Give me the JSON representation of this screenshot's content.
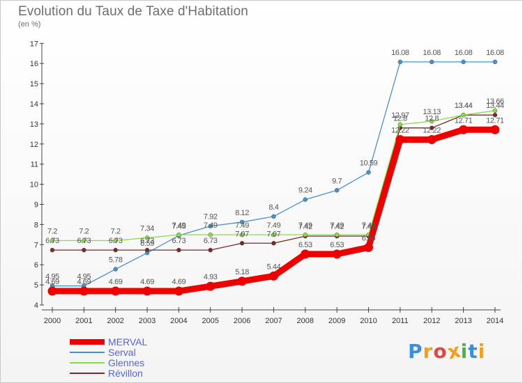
{
  "chart_data": {
    "type": "line",
    "title": "Evolution du Taux de Taxe d'Habitation",
    "subtitle": "(en %)",
    "x": [
      "2000",
      "2001",
      "2002",
      "2003",
      "2004",
      "2005",
      "2006",
      "2007",
      "2008",
      "2009",
      "2010",
      "2011",
      "2012",
      "2013",
      "2014"
    ],
    "ylim": [
      4,
      17
    ],
    "yticks": [
      4,
      5,
      6,
      7,
      8,
      9,
      10,
      11,
      12,
      13,
      14,
      15,
      16,
      17
    ],
    "grid": false,
    "legend_position": "bottom-left",
    "series": [
      {
        "name": "MERVAL",
        "color": "#ee0000",
        "values": [
          4.69,
          4.69,
          4.69,
          4.69,
          4.69,
          4.93,
          5.18,
          5.44,
          6.53,
          6.53,
          6.86,
          12.22,
          12.22,
          12.71,
          12.71
        ],
        "labels": [
          "4.69",
          "4.69",
          "4.69",
          "4.69",
          "4.69",
          "4.93",
          "5.18",
          "5.44",
          "6.53",
          "6.53",
          "6.86",
          "12.22",
          "12.22",
          "12.71",
          "12.71"
        ]
      },
      {
        "name": "Serval",
        "color": "#4a90c8",
        "values": [
          4.95,
          4.95,
          5.78,
          6.59,
          7.45,
          7.92,
          8.12,
          8.4,
          9.24,
          9.7,
          10.59,
          16.08,
          16.08,
          16.08,
          16.08
        ],
        "labels": [
          "4.95",
          "4.95",
          "5.78",
          "6.59",
          "7.45",
          "7.92",
          "8.12",
          "8.4",
          "9.24",
          "9.7",
          "10.59",
          "16.08",
          "16.08",
          "16.08",
          "16.08"
        ]
      },
      {
        "name": "Glennes",
        "color": "#88dd44",
        "values": [
          7.2,
          7.2,
          7.2,
          7.34,
          7.49,
          7.49,
          7.49,
          7.49,
          7.49,
          7.49,
          7.49,
          12.97,
          13.13,
          13.44,
          13.66
        ],
        "labels": [
          "7.2",
          "7.2",
          "7.2",
          "7.34",
          "7.49",
          "7.49",
          "7.49",
          "7.49",
          "7.49",
          "7.49",
          "7.49",
          "12.97",
          "13.13",
          "13.44",
          "13.66"
        ]
      },
      {
        "name": "Révillon",
        "color": "#7a2828",
        "values": [
          6.73,
          6.73,
          6.73,
          6.73,
          6.73,
          6.73,
          7.07,
          7.07,
          7.42,
          7.42,
          7.42,
          12.8,
          12.8,
          13.44,
          13.44
        ],
        "labels": [
          "6.73",
          "6.73",
          "6.73",
          "6.73",
          "6.73",
          "6.73",
          "7.07",
          "7.07",
          "7.42",
          "7.42",
          "7.42",
          "12.8",
          "12.8",
          "13.44",
          "13.44"
        ]
      }
    ]
  },
  "logo": {
    "letters": [
      "P",
      "r",
      "o",
      "x",
      "i",
      "t",
      "i"
    ],
    "colors": [
      "#3a8fd8",
      "#f0a020",
      "#e04848",
      "#f0a020",
      "#4ab44a",
      "#3a8fd8",
      "#f0a020"
    ]
  }
}
